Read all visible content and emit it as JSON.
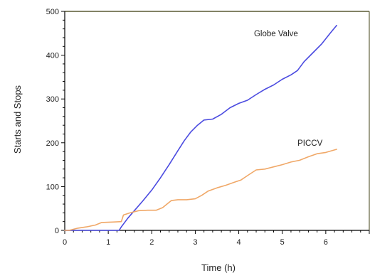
{
  "chart_data": {
    "type": "line",
    "title": "",
    "xlabel": "Time (h)",
    "ylabel": "Starts and Stops",
    "xlim": [
      0,
      7
    ],
    "ylim": [
      0,
      500
    ],
    "xticks": [
      0,
      1,
      2,
      3,
      4,
      5,
      6
    ],
    "yticks": [
      0,
      100,
      200,
      300,
      400,
      500
    ],
    "grid": false,
    "legend": "none",
    "series": [
      {
        "name": "Globe Valve",
        "color": "#4b4be0",
        "label_at": [
          4.35,
          443
        ],
        "points": [
          [
            0.0,
            0
          ],
          [
            0.15,
            0
          ],
          [
            1.25,
            0
          ],
          [
            1.3,
            8
          ],
          [
            1.45,
            28
          ],
          [
            1.6,
            45
          ],
          [
            1.8,
            68
          ],
          [
            2.0,
            92
          ],
          [
            2.2,
            120
          ],
          [
            2.4,
            150
          ],
          [
            2.6,
            182
          ],
          [
            2.75,
            205
          ],
          [
            2.9,
            225
          ],
          [
            3.05,
            240
          ],
          [
            3.2,
            252
          ],
          [
            3.4,
            254
          ],
          [
            3.6,
            265
          ],
          [
            3.8,
            280
          ],
          [
            4.0,
            290
          ],
          [
            4.2,
            297
          ],
          [
            4.4,
            310
          ],
          [
            4.6,
            322
          ],
          [
            4.8,
            332
          ],
          [
            5.0,
            345
          ],
          [
            5.2,
            355
          ],
          [
            5.35,
            365
          ],
          [
            5.5,
            385
          ],
          [
            5.7,
            405
          ],
          [
            5.9,
            425
          ],
          [
            6.1,
            450
          ],
          [
            6.25,
            468
          ]
        ]
      },
      {
        "name": "PICCV",
        "color": "#f0a868",
        "label_at": [
          5.35,
          193
        ],
        "points": [
          [
            0.0,
            0
          ],
          [
            0.1,
            0
          ],
          [
            0.3,
            5
          ],
          [
            0.5,
            8
          ],
          [
            0.7,
            12
          ],
          [
            0.85,
            18
          ],
          [
            1.1,
            19
          ],
          [
            1.3,
            20
          ],
          [
            1.35,
            35
          ],
          [
            1.5,
            40
          ],
          [
            1.7,
            45
          ],
          [
            1.9,
            46
          ],
          [
            2.1,
            46
          ],
          [
            2.25,
            52
          ],
          [
            2.35,
            60
          ],
          [
            2.45,
            68
          ],
          [
            2.6,
            70
          ],
          [
            2.8,
            70
          ],
          [
            3.0,
            72
          ],
          [
            3.15,
            80
          ],
          [
            3.3,
            90
          ],
          [
            3.5,
            97
          ],
          [
            3.7,
            103
          ],
          [
            3.9,
            110
          ],
          [
            4.05,
            115
          ],
          [
            4.2,
            125
          ],
          [
            4.4,
            138
          ],
          [
            4.6,
            140
          ],
          [
            4.8,
            145
          ],
          [
            5.0,
            150
          ],
          [
            5.2,
            156
          ],
          [
            5.4,
            160
          ],
          [
            5.6,
            168
          ],
          [
            5.8,
            175
          ],
          [
            6.0,
            178
          ],
          [
            6.25,
            185
          ]
        ]
      }
    ]
  }
}
